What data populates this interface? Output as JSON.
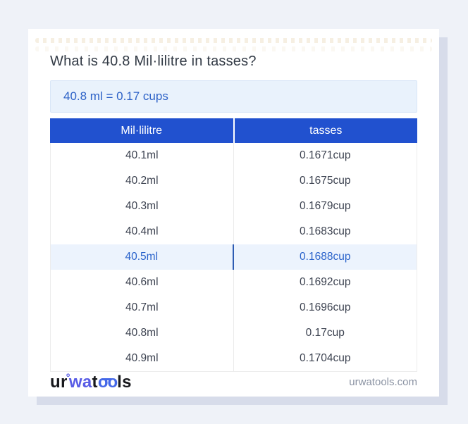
{
  "page": {
    "title": "What is 40.8 Mil·lilitre in tasses?"
  },
  "result": {
    "text": "40.8 ml = 0.17 cups"
  },
  "table": {
    "columns": [
      "Mil·lilitre",
      "tasses"
    ],
    "highlighted_row": "40.5ml",
    "rows": [
      {
        "ml": "40.1ml",
        "cup": "0.1671cup"
      },
      {
        "ml": "40.2ml",
        "cup": "0.1675cup"
      },
      {
        "ml": "40.3ml",
        "cup": "0.1679cup"
      },
      {
        "ml": "40.4ml",
        "cup": "0.1683cup"
      },
      {
        "ml": "40.5ml",
        "cup": "0.1688cup"
      },
      {
        "ml": "40.6ml",
        "cup": "0.1692cup"
      },
      {
        "ml": "40.7ml",
        "cup": "0.1696cup"
      },
      {
        "ml": "40.8ml",
        "cup": "0.17cup"
      },
      {
        "ml": "40.9ml",
        "cup": "0.1704cup"
      }
    ]
  },
  "footer": {
    "logo": {
      "ur": "ur",
      "ring": "°",
      "wa": "wa",
      "t": "t",
      "oo": "oo",
      "ls": "ls"
    },
    "website": "urwatools.com"
  },
  "colors": {
    "page_background": "#eff2f8",
    "card_shadow": "#d7dcea",
    "header_blue": "#2151cf",
    "header_text": "#ffffff",
    "result_background": "#e9f2fc",
    "result_text": "#2d62c7",
    "highlight_row_background": "#ecf3fd",
    "highlight_text": "#2a63cb",
    "highlight_divider": "#2e5cb3",
    "cell_text": "#3c4250",
    "brand_purple": "#585ce5",
    "brand_blue": "#4468e8",
    "footer_text": "#8b93a3"
  }
}
